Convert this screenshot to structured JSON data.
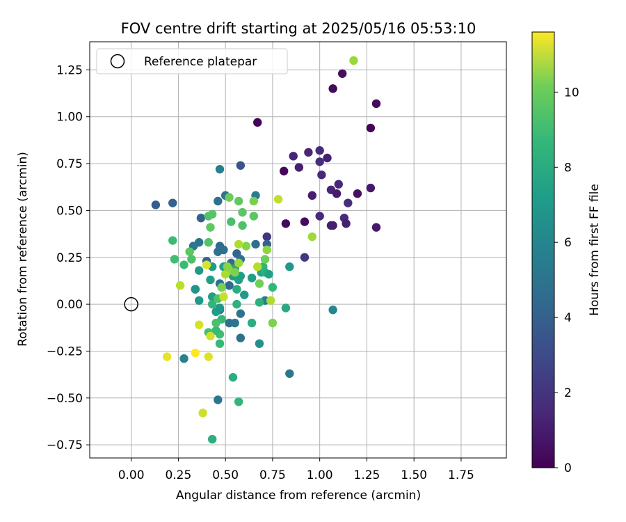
{
  "chart_data": {
    "type": "scatter",
    "title": "FOV centre drift starting at 2025/05/16 05:53:10",
    "xlabel": "Angular distance from reference (arcmin)",
    "ylabel": "Rotation from reference (arcmin)",
    "xlim": [
      -0.22,
      1.99
    ],
    "ylim": [
      -0.82,
      1.4
    ],
    "xticks": [
      0.0,
      0.25,
      0.5,
      0.75,
      1.0,
      1.25,
      1.5,
      1.75
    ],
    "xtick_labels": [
      "0.00",
      "0.25",
      "0.50",
      "0.75",
      "1.00",
      "1.25",
      "1.50",
      "1.75"
    ],
    "yticks": [
      -0.75,
      -0.5,
      -0.25,
      0.0,
      0.25,
      0.5,
      0.75,
      1.0,
      1.25
    ],
    "ytick_labels": [
      "−0.75",
      "−0.50",
      "−0.25",
      "0.00",
      "0.25",
      "0.50",
      "0.75",
      "1.00",
      "1.25"
    ],
    "grid": true,
    "legend": {
      "placement": "top-left",
      "entries": [
        "Reference platepar"
      ]
    },
    "reference_point": {
      "label": "Reference platepar",
      "x": 0.0,
      "y": 0.0,
      "marker": "open-circle"
    },
    "colorbar": {
      "label": "Hours from first FF file",
      "colormap": "viridis",
      "range": [
        0,
        11.6
      ],
      "ticks": [
        0,
        2,
        4,
        6,
        8,
        10
      ],
      "tick_labels": [
        "0",
        "2",
        "4",
        "6",
        "8",
        "10"
      ]
    },
    "points": [
      {
        "x": 0.67,
        "y": 0.97,
        "c": 0.1
      },
      {
        "x": 1.27,
        "y": 0.94,
        "c": 0.1
      },
      {
        "x": 1.3,
        "y": 1.07,
        "c": 0.3
      },
      {
        "x": 1.07,
        "y": 1.15,
        "c": 0.3
      },
      {
        "x": 1.12,
        "y": 1.23,
        "c": 0.5
      },
      {
        "x": 0.81,
        "y": 0.71,
        "c": 0.2
      },
      {
        "x": 0.86,
        "y": 0.79,
        "c": 1.2
      },
      {
        "x": 0.89,
        "y": 0.73,
        "c": 1.0
      },
      {
        "x": 0.94,
        "y": 0.81,
        "c": 1.2
      },
      {
        "x": 1.0,
        "y": 0.82,
        "c": 1.4
      },
      {
        "x": 1.0,
        "y": 0.76,
        "c": 1.5
      },
      {
        "x": 1.04,
        "y": 0.78,
        "c": 1.1
      },
      {
        "x": 1.01,
        "y": 0.69,
        "c": 1.3
      },
      {
        "x": 0.96,
        "y": 0.58,
        "c": 1.0
      },
      {
        "x": 1.06,
        "y": 0.61,
        "c": 1.2
      },
      {
        "x": 1.09,
        "y": 0.59,
        "c": 0.9
      },
      {
        "x": 1.1,
        "y": 0.64,
        "c": 1.3
      },
      {
        "x": 1.2,
        "y": 0.59,
        "c": 0.5
      },
      {
        "x": 1.27,
        "y": 0.62,
        "c": 0.8
      },
      {
        "x": 1.15,
        "y": 0.54,
        "c": 1.6
      },
      {
        "x": 1.0,
        "y": 0.47,
        "c": 1.4
      },
      {
        "x": 1.13,
        "y": 0.46,
        "c": 1.5
      },
      {
        "x": 1.14,
        "y": 0.43,
        "c": 1.0
      },
      {
        "x": 1.06,
        "y": 0.42,
        "c": 1.1
      },
      {
        "x": 1.07,
        "y": 0.42,
        "c": 1.0
      },
      {
        "x": 1.3,
        "y": 0.41,
        "c": 0.8
      },
      {
        "x": 0.82,
        "y": 0.43,
        "c": 0.3
      },
      {
        "x": 0.92,
        "y": 0.44,
        "c": 0.3
      },
      {
        "x": 0.72,
        "y": 0.36,
        "c": 1.8
      },
      {
        "x": 0.92,
        "y": 0.25,
        "c": 1.9
      },
      {
        "x": 0.58,
        "y": 0.74,
        "c": 3.0
      },
      {
        "x": 0.47,
        "y": 0.72,
        "c": 5.0
      },
      {
        "x": 0.13,
        "y": 0.53,
        "c": 3.4
      },
      {
        "x": 0.22,
        "y": 0.54,
        "c": 3.6
      },
      {
        "x": 0.37,
        "y": 0.46,
        "c": 3.6
      },
      {
        "x": 0.5,
        "y": 0.58,
        "c": 4.4
      },
      {
        "x": 0.46,
        "y": 0.55,
        "c": 4.3
      },
      {
        "x": 0.66,
        "y": 0.58,
        "c": 4.8
      },
      {
        "x": 0.72,
        "y": 0.32,
        "c": 3.6
      },
      {
        "x": 0.66,
        "y": 0.32,
        "c": 4.2
      },
      {
        "x": 0.33,
        "y": 0.31,
        "c": 3.6
      },
      {
        "x": 0.36,
        "y": 0.33,
        "c": 4.4
      },
      {
        "x": 0.4,
        "y": 0.23,
        "c": 3.8
      },
      {
        "x": 0.47,
        "y": 0.31,
        "c": 4.1
      },
      {
        "x": 0.46,
        "y": 0.28,
        "c": 4.3
      },
      {
        "x": 0.49,
        "y": 0.29,
        "c": 4.2
      },
      {
        "x": 0.56,
        "y": 0.27,
        "c": 3.8
      },
      {
        "x": 0.53,
        "y": 0.22,
        "c": 4.2
      },
      {
        "x": 0.58,
        "y": 0.24,
        "c": 4.3
      },
      {
        "x": 0.34,
        "y": 0.08,
        "c": 4.0
      },
      {
        "x": 0.47,
        "y": 0.11,
        "c": 4.3
      },
      {
        "x": 0.52,
        "y": 0.1,
        "c": 4.0
      },
      {
        "x": 0.5,
        "y": 0.2,
        "c": 5.4
      },
      {
        "x": 0.47,
        "y": -0.03,
        "c": 4.5
      },
      {
        "x": 0.52,
        "y": -0.1,
        "c": 4.2
      },
      {
        "x": 0.55,
        "y": -0.1,
        "c": 4.5
      },
      {
        "x": 0.58,
        "y": -0.05,
        "c": 4.5
      },
      {
        "x": 0.58,
        "y": -0.18,
        "c": 4.3
      },
      {
        "x": 0.28,
        "y": -0.29,
        "c": 5.2
      },
      {
        "x": 0.46,
        "y": -0.51,
        "c": 4.5
      },
      {
        "x": 0.84,
        "y": -0.37,
        "c": 4.6
      },
      {
        "x": 1.07,
        "y": -0.03,
        "c": 5.4
      },
      {
        "x": 0.71,
        "y": 0.02,
        "c": 4.8
      },
      {
        "x": 0.68,
        "y": -0.21,
        "c": 5.8
      },
      {
        "x": 0.33,
        "y": 0.31,
        "c": 4.6
      },
      {
        "x": 0.43,
        "y": 0.2,
        "c": 6.4
      },
      {
        "x": 0.36,
        "y": 0.18,
        "c": 6.2
      },
      {
        "x": 0.34,
        "y": 0.08,
        "c": 6.0
      },
      {
        "x": 0.36,
        "y": 0.02,
        "c": 6.2
      },
      {
        "x": 0.42,
        "y": 0.13,
        "c": 6.5
      },
      {
        "x": 0.43,
        "y": 0.04,
        "c": 6.5
      },
      {
        "x": 0.45,
        "y": -0.04,
        "c": 6.4
      },
      {
        "x": 0.47,
        "y": -0.02,
        "c": 6.1
      },
      {
        "x": 0.48,
        "y": 0.09,
        "c": 6.7
      },
      {
        "x": 0.49,
        "y": 0.2,
        "c": 6.6
      },
      {
        "x": 0.51,
        "y": 0.17,
        "c": 6.5
      },
      {
        "x": 0.54,
        "y": 0.15,
        "c": 6.3
      },
      {
        "x": 0.55,
        "y": 0.19,
        "c": 7.0
      },
      {
        "x": 0.57,
        "y": 0.13,
        "c": 6.6
      },
      {
        "x": 0.58,
        "y": 0.15,
        "c": 6.5
      },
      {
        "x": 0.6,
        "y": 0.05,
        "c": 6.3
      },
      {
        "x": 0.56,
        "y": 0.08,
        "c": 7.1
      },
      {
        "x": 0.56,
        "y": 0.0,
        "c": 7.4
      },
      {
        "x": 0.64,
        "y": 0.14,
        "c": 6.5
      },
      {
        "x": 0.69,
        "y": 0.17,
        "c": 6.8
      },
      {
        "x": 0.7,
        "y": 0.2,
        "c": 7.6
      },
      {
        "x": 0.71,
        "y": 0.17,
        "c": 7.3
      },
      {
        "x": 0.73,
        "y": 0.16,
        "c": 6.6
      },
      {
        "x": 0.84,
        "y": 0.2,
        "c": 6.2
      },
      {
        "x": 0.82,
        "y": -0.02,
        "c": 7.0
      },
      {
        "x": 0.75,
        "y": 0.09,
        "c": 7.7
      },
      {
        "x": 0.68,
        "y": 0.01,
        "c": 7.3
      },
      {
        "x": 0.64,
        "y": -0.1,
        "c": 7.2
      },
      {
        "x": 0.54,
        "y": -0.39,
        "c": 7.2
      },
      {
        "x": 0.57,
        "y": -0.52,
        "c": 7.6
      },
      {
        "x": 0.43,
        "y": -0.72,
        "c": 7.3
      },
      {
        "x": 0.47,
        "y": -0.21,
        "c": 7.8
      },
      {
        "x": 0.47,
        "y": -0.16,
        "c": 8.0
      },
      {
        "x": 0.45,
        "y": -0.14,
        "c": 7.8
      },
      {
        "x": 0.41,
        "y": -0.15,
        "c": 8.1
      },
      {
        "x": 0.43,
        "y": 0.0,
        "c": 7.6
      },
      {
        "x": 0.46,
        "y": 0.03,
        "c": 8.3
      },
      {
        "x": 0.48,
        "y": -0.08,
        "c": 7.8
      },
      {
        "x": 0.45,
        "y": -0.1,
        "c": 8.2
      },
      {
        "x": 0.28,
        "y": 0.21,
        "c": 7.9
      },
      {
        "x": 0.22,
        "y": 0.34,
        "c": 7.9
      },
      {
        "x": 0.23,
        "y": 0.24,
        "c": 8.0
      },
      {
        "x": 0.31,
        "y": 0.28,
        "c": 8.6
      },
      {
        "x": 0.32,
        "y": 0.24,
        "c": 8.3
      },
      {
        "x": 0.41,
        "y": 0.33,
        "c": 8.4
      },
      {
        "x": 0.42,
        "y": 0.41,
        "c": 8.7
      },
      {
        "x": 0.41,
        "y": 0.47,
        "c": 8.3
      },
      {
        "x": 0.43,
        "y": 0.48,
        "c": 8.5
      },
      {
        "x": 0.53,
        "y": 0.44,
        "c": 8.2
      },
      {
        "x": 0.52,
        "y": 0.57,
        "c": 8.9
      },
      {
        "x": 0.57,
        "y": 0.55,
        "c": 8.7
      },
      {
        "x": 0.59,
        "y": 0.49,
        "c": 8.6
      },
      {
        "x": 0.59,
        "y": 0.42,
        "c": 8.3
      },
      {
        "x": 0.65,
        "y": 0.47,
        "c": 8.6
      },
      {
        "x": 0.65,
        "y": 0.55,
        "c": 9.2
      },
      {
        "x": 0.61,
        "y": 0.31,
        "c": 9.4
      },
      {
        "x": 0.57,
        "y": 0.32,
        "c": 10.2
      },
      {
        "x": 0.57,
        "y": 0.22,
        "c": 9.9
      },
      {
        "x": 0.52,
        "y": 0.18,
        "c": 9.7
      },
      {
        "x": 0.55,
        "y": 0.17,
        "c": 9.3
      },
      {
        "x": 0.5,
        "y": 0.16,
        "c": 10.1
      },
      {
        "x": 0.51,
        "y": 0.2,
        "c": 9.5
      },
      {
        "x": 0.48,
        "y": 0.09,
        "c": 9.2
      },
      {
        "x": 0.49,
        "y": 0.04,
        "c": 10.6
      },
      {
        "x": 0.67,
        "y": 0.2,
        "c": 10.3
      },
      {
        "x": 0.68,
        "y": 0.11,
        "c": 9.1
      },
      {
        "x": 0.72,
        "y": 0.29,
        "c": 9.6
      },
      {
        "x": 0.71,
        "y": 0.24,
        "c": 9.0
      },
      {
        "x": 0.74,
        "y": 0.02,
        "c": 10.2
      },
      {
        "x": 0.75,
        "y": -0.1,
        "c": 9.3
      },
      {
        "x": 0.78,
        "y": 0.56,
        "c": 10.5
      },
      {
        "x": 0.96,
        "y": 0.36,
        "c": 9.9
      },
      {
        "x": 1.18,
        "y": 1.3,
        "c": 9.8
      },
      {
        "x": 0.26,
        "y": 0.1,
        "c": 10.4
      },
      {
        "x": 0.4,
        "y": 0.21,
        "c": 11.0
      },
      {
        "x": 0.36,
        "y": -0.11,
        "c": 10.9
      },
      {
        "x": 0.42,
        "y": -0.17,
        "c": 10.8
      },
      {
        "x": 0.38,
        "y": -0.58,
        "c": 10.7
      },
      {
        "x": 0.41,
        "y": -0.28,
        "c": 11.0
      },
      {
        "x": 0.19,
        "y": -0.28,
        "c": 11.2
      },
      {
        "x": 0.34,
        "y": -0.26,
        "c": 11.6
      }
    ]
  }
}
